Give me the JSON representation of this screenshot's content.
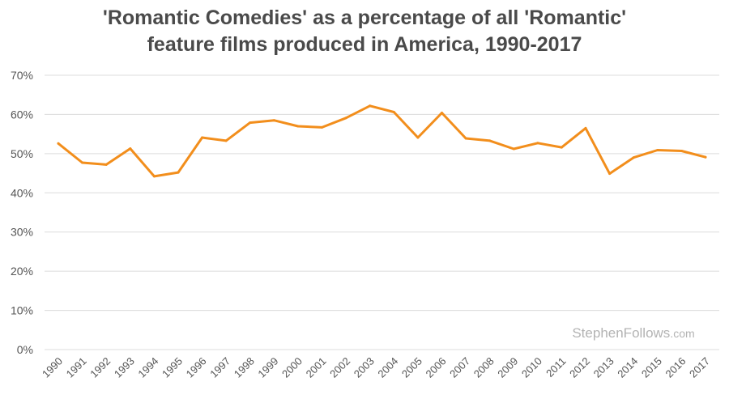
{
  "chart_data": {
    "type": "line",
    "title_lines": [
      "'Romantic Comedies' as a percentage of all 'Romantic'",
      "feature films produced in America, 1990-2017"
    ],
    "xlabel": "",
    "ylabel": "",
    "x": [
      "1990",
      "1991",
      "1992",
      "1993",
      "1994",
      "1995",
      "1996",
      "1997",
      "1998",
      "1999",
      "2000",
      "2001",
      "2002",
      "2003",
      "2004",
      "2005",
      "2006",
      "2007",
      "2008",
      "2009",
      "2010",
      "2011",
      "2012",
      "2013",
      "2014",
      "2015",
      "2016",
      "2017"
    ],
    "series": [
      {
        "values": [
          52.6,
          47.7,
          47.2,
          51.3,
          44.2,
          45.2,
          54.1,
          53.3,
          57.9,
          58.5,
          57.0,
          56.7,
          59.1,
          62.2,
          60.6,
          54.1,
          60.4,
          53.9,
          53.3,
          51.2,
          52.7,
          51.6,
          56.5,
          44.9,
          49.0,
          50.9,
          50.7,
          49.1
        ],
        "color": "#f28e1c"
      }
    ],
    "ylim": [
      0,
      70
    ],
    "yticks": [
      0,
      10,
      20,
      30,
      40,
      50,
      60,
      70
    ],
    "ytick_labels": [
      "0%",
      "10%",
      "20%",
      "30%",
      "40%",
      "50%",
      "60%",
      "70%"
    ],
    "grid": true,
    "legend": "none"
  },
  "watermark": {
    "main": "StephenFollows",
    "suffix": ".com"
  }
}
